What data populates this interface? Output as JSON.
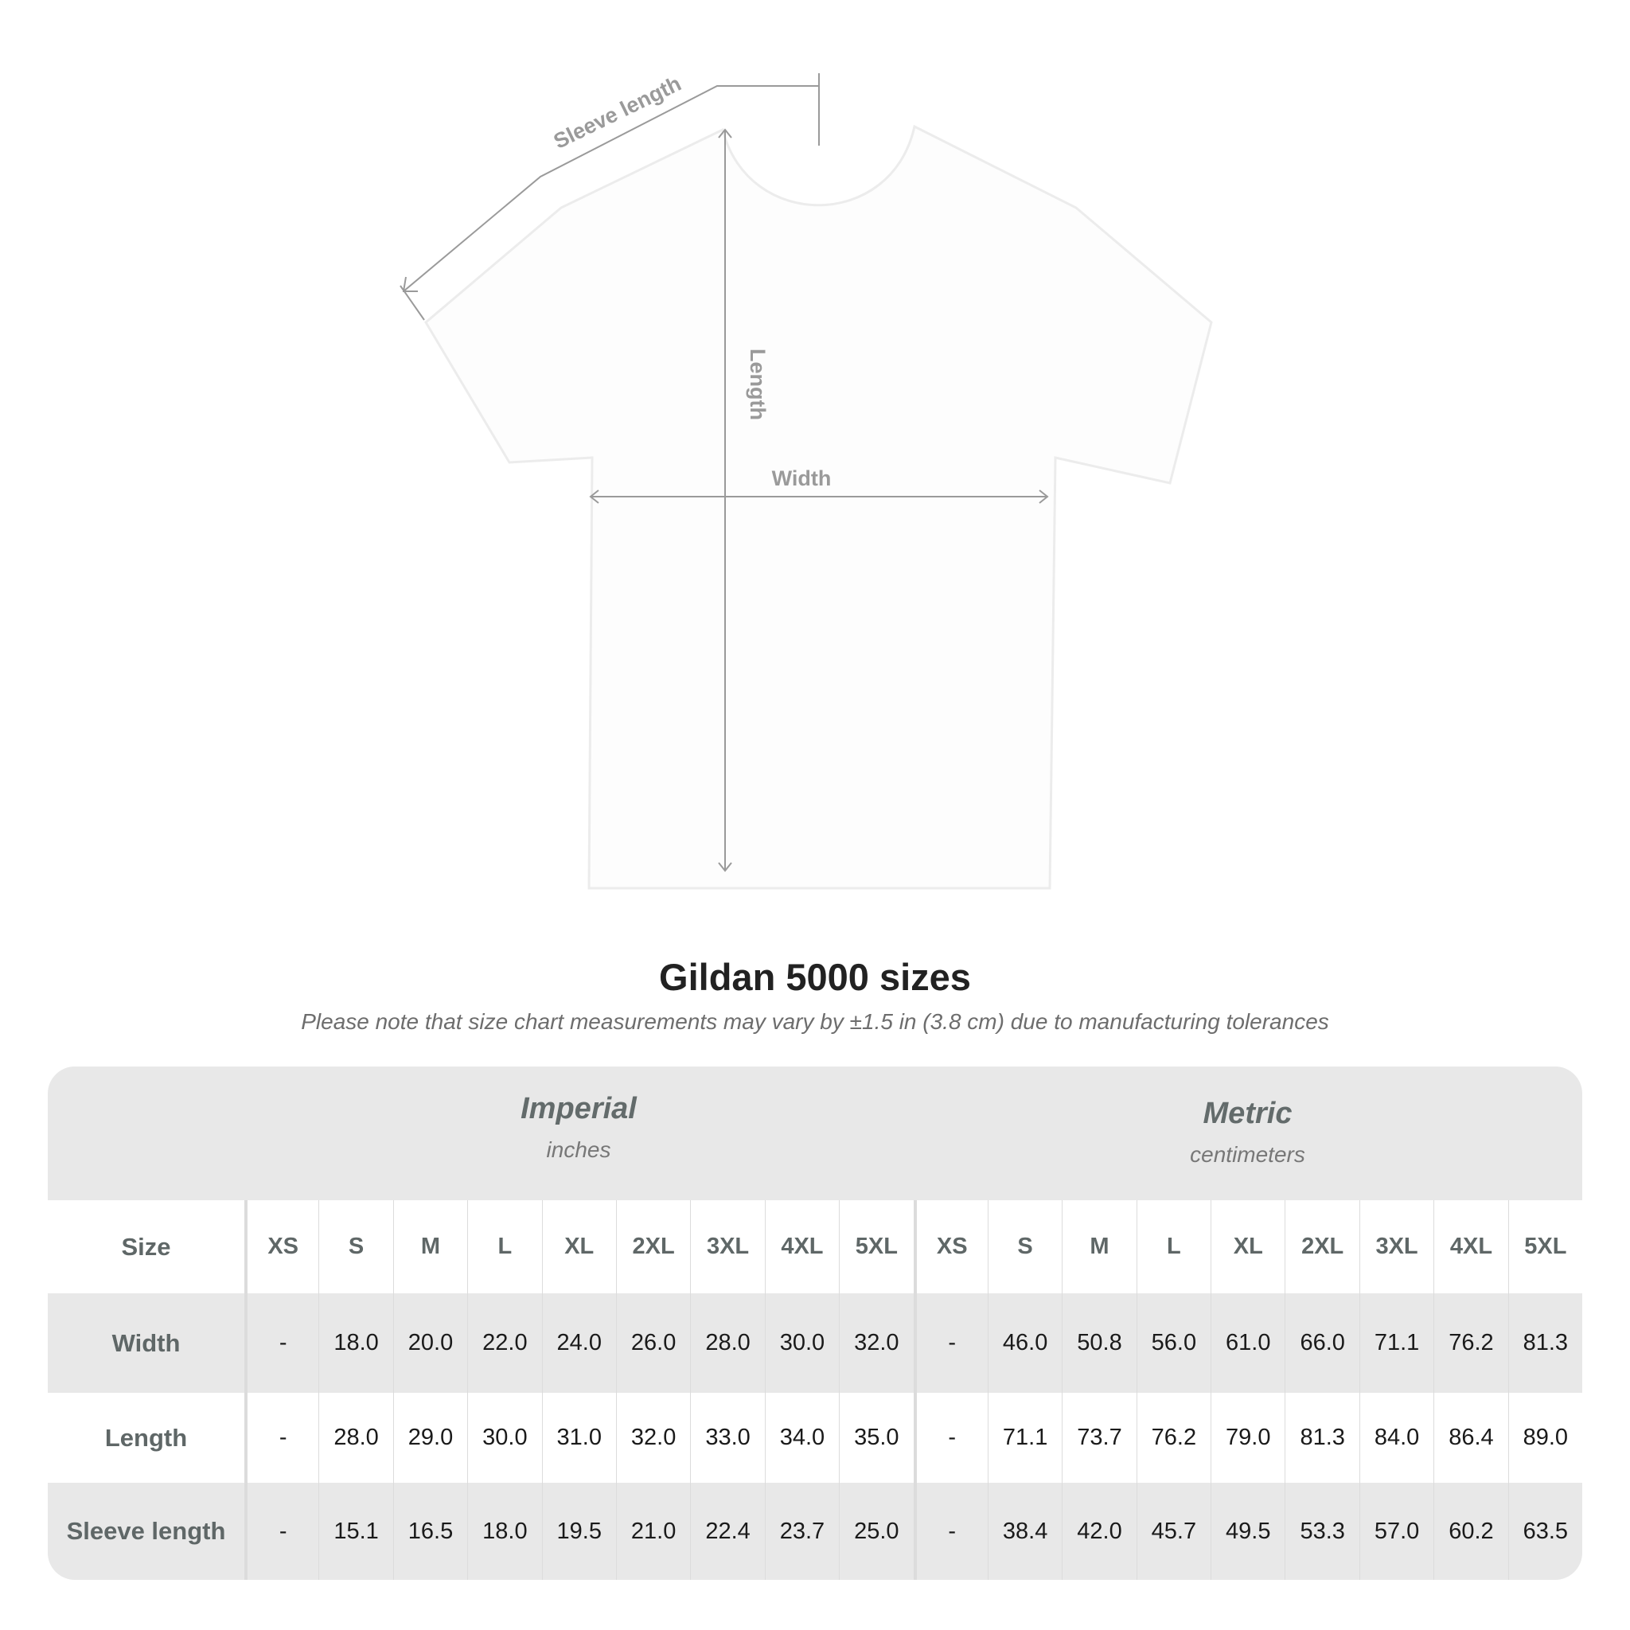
{
  "diagram": {
    "sleeve_label": "Sleeve length",
    "length_label": "Length",
    "width_label": "Width",
    "line_color": "#9a9a9a"
  },
  "title": "Gildan 5000 sizes",
  "note": "Please note that size chart measurements may vary by ±1.5 in (3.8 cm) due to manufacturing tolerances",
  "table": {
    "imperial": {
      "name": "Imperial",
      "unit": "inches"
    },
    "metric": {
      "name": "Metric",
      "unit": "centimeters"
    },
    "size_label": "Size",
    "sizes": [
      "XS",
      "S",
      "M",
      "L",
      "XL",
      "2XL",
      "3XL",
      "4XL",
      "5XL"
    ],
    "rows": [
      {
        "label": "Width",
        "imperial": [
          "-",
          "18.0",
          "20.0",
          "22.0",
          "24.0",
          "26.0",
          "28.0",
          "30.0",
          "32.0"
        ],
        "metric": [
          "-",
          "46.0",
          "50.8",
          "56.0",
          "61.0",
          "66.0",
          "71.1",
          "76.2",
          "81.3"
        ]
      },
      {
        "label": "Length",
        "imperial": [
          "-",
          "28.0",
          "29.0",
          "30.0",
          "31.0",
          "32.0",
          "33.0",
          "34.0",
          "35.0"
        ],
        "metric": [
          "-",
          "71.1",
          "73.7",
          "76.2",
          "79.0",
          "81.3",
          "84.0",
          "86.4",
          "89.0"
        ]
      },
      {
        "label": "Sleeve length",
        "imperial": [
          "-",
          "15.1",
          "16.5",
          "18.0",
          "19.5",
          "21.0",
          "22.4",
          "23.7",
          "25.0"
        ],
        "metric": [
          "-",
          "38.4",
          "42.0",
          "45.7",
          "49.5",
          "53.3",
          "57.0",
          "60.2",
          "63.5"
        ]
      }
    ]
  }
}
